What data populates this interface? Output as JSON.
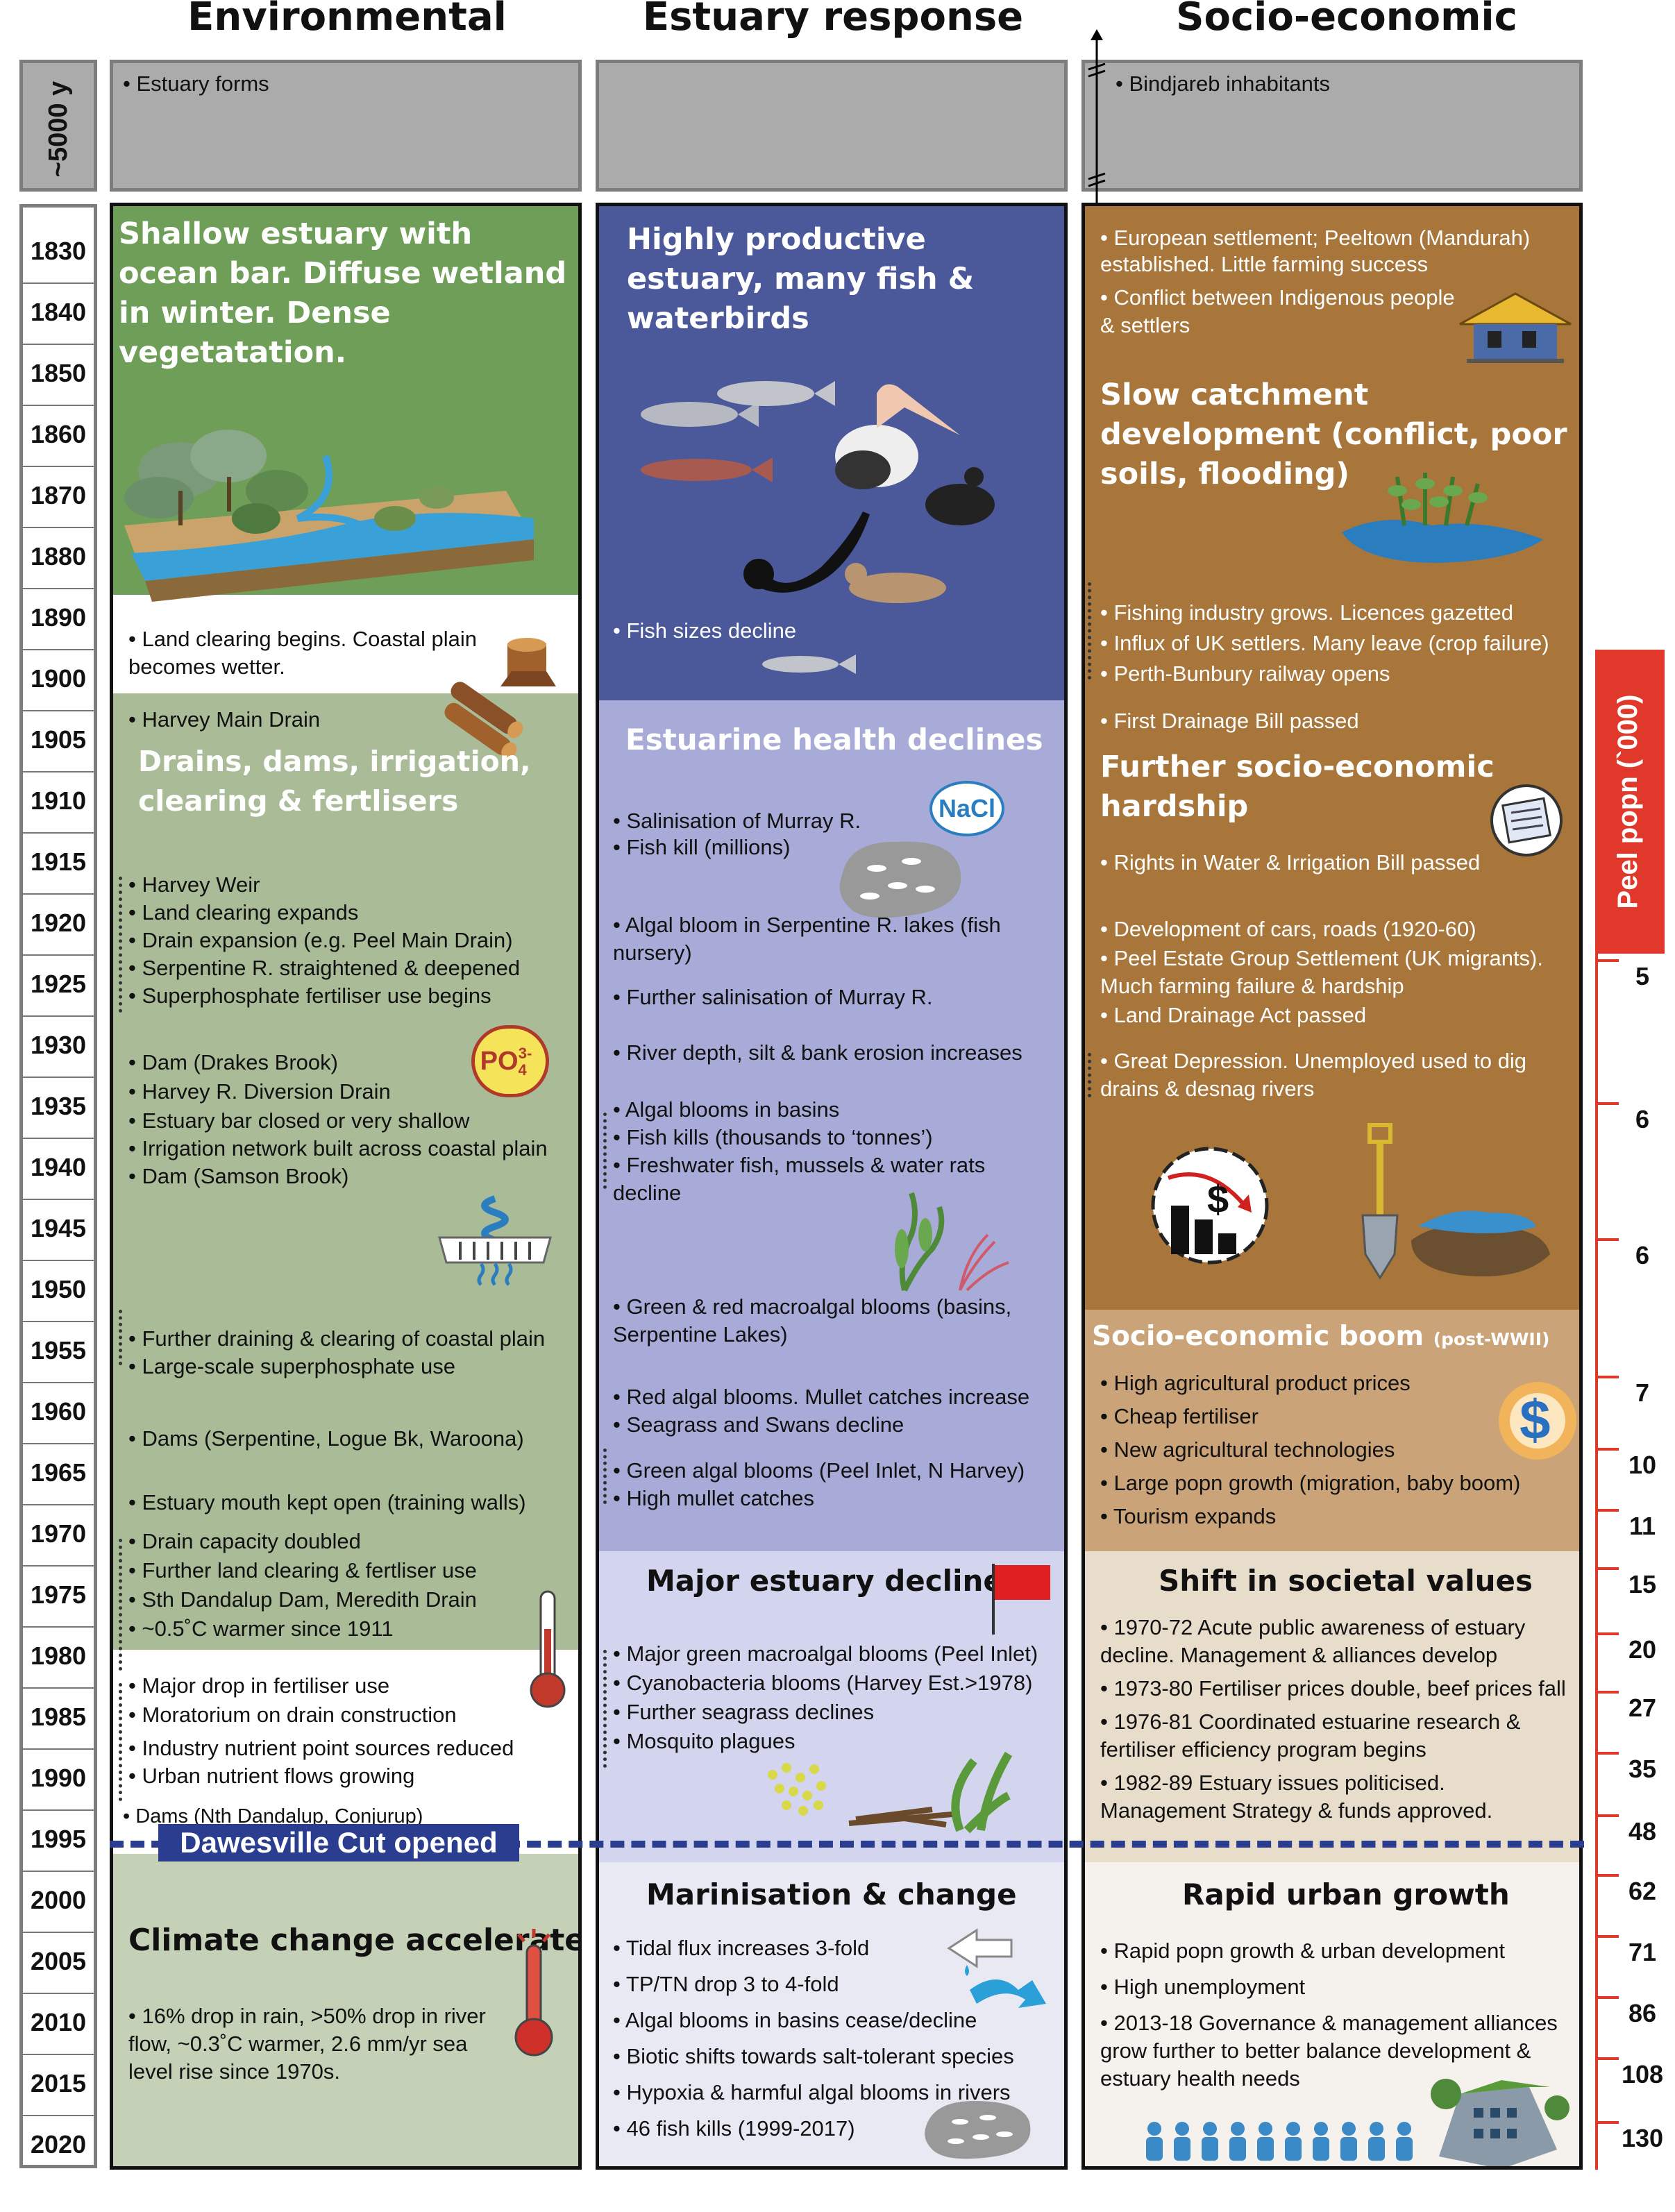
{
  "columns": {
    "env": "Environmental",
    "est": "Estuary response",
    "soc": "Socio-economic"
  },
  "top_label": "~5000 y",
  "top": {
    "env": "• Estuary forms",
    "est": "",
    "soc": "• Bindjareb inhabitants"
  },
  "years": [
    "1830",
    "1840",
    "1850",
    "1860",
    "1870",
    "1880",
    "1890",
    "1900",
    "1905",
    "1910",
    "1915",
    "1920",
    "1925",
    "1930",
    "1935",
    "1940",
    "1945",
    "1950",
    "1955",
    "1960",
    "1965",
    "1970",
    "1975",
    "1980",
    "1985",
    "1990",
    "1995",
    "2000",
    "2005",
    "2010",
    "2015",
    "2020"
  ],
  "env": {
    "h1": "Shallow estuary with ocean bar. Diffuse wetland in winter. Dense vegetatation.",
    "w1": [
      "• Land clearing begins. Coastal plain",
      "becomes wetter."
    ],
    "b1": "• Harvey Main Drain",
    "h2": "Drains, dams, irrigation, clearing & fertlisers",
    "g1": [
      "• Harvey Weir",
      "• Land clearing expands",
      "• Drain expansion (e.g. Peel Main Drain)",
      "• Serpentine R. straightened & deepened",
      "• Superphosphate fertiliser use begins"
    ],
    "g2": [
      "• Dam (Drakes Brook)",
      "• Harvey R. Diversion Drain",
      "• Estuary bar closed or very shallow",
      "• Irrigation network built across coastal plain",
      "• Dam (Samson Brook)"
    ],
    "po4": "PO",
    "po4sup": "3-",
    "po4sub": "4",
    "g3": [
      "• Further draining & clearing of coastal plain",
      "• Large-scale superphosphate use"
    ],
    "g4": "• Dams (Serpentine, Logue Bk, Waroona)",
    "g5": "• Estuary mouth kept open (training walls)",
    "g6": [
      "• Drain capacity doubled",
      "• Further land clearing & fertliser use",
      "• Sth Dandalup Dam, Meredith Drain",
      "• ~0.5˚C warmer since 1911"
    ],
    "w2": [
      "• Major drop in fertiliser use",
      "• Moratorium on drain construction",
      "• Industry nutrient point sources reduced",
      "• Urban nutrient flows growing"
    ],
    "w3": "• Dams (Nth Dandalup, Conjurup)",
    "cut": "Dawesville Cut opened",
    "h3": "Climate change accelerates",
    "g7": [
      "• 16% drop in rain, >50% drop in river",
      "flow, ~0.3˚C warmer, 2.6 mm/yr sea",
      "level rise since 1970s."
    ]
  },
  "est": {
    "h1": "Highly productive estuary, many fish & waterbirds",
    "b1": "• Fish sizes decline",
    "h2": "Estuarine health declines",
    "nacl": "NaCl",
    "l1": [
      "• Salinisation of Murray R.",
      "• Fish kill (millions)"
    ],
    "l2": [
      "• Algal bloom in Serpentine R. lakes (fish",
      "nursery)"
    ],
    "l3": "• Further salinisation of Murray R.",
    "l4": "• River depth, silt & bank erosion increases",
    "l5": [
      "• Algal blooms in basins",
      "• Fish kills (thousands to ‘tonnes’)",
      "• Freshwater fish, mussels & water rats",
      "decline"
    ],
    "l6": [
      "• Green & red macroalgal blooms (basins,",
      "Serpentine Lakes)"
    ],
    "l7": [
      "• Red algal blooms. Mullet catches increase",
      "• Seagrass and Swans decline"
    ],
    "l8": [
      "• Green algal blooms (Peel Inlet, N Harvey)",
      "• High mullet catches"
    ],
    "h3": "Major estuary decline",
    "l9": [
      "• Major green macroalgal blooms (Peel Inlet)",
      "• Cyanobacteria blooms (Harvey Est.>1978)",
      "• Further seagrass declines",
      "• Mosquito plagues"
    ],
    "h4": "Marinisation & change",
    "l10": [
      "• Tidal flux increases 3-fold",
      "• TP/TN drop 3 to 4-fold",
      "• Algal blooms in basins cease/decline",
      "• Biotic shifts towards salt-tolerant species",
      "• Hypoxia & harmful algal blooms in rivers",
      "• 46 fish kills (1999-2017)"
    ]
  },
  "soc": {
    "t1": [
      "• European settlement; Peeltown (Mandurah)",
      "established. Little farming success"
    ],
    "t2": [
      "• Conflict between Indigenous people",
      "& settlers"
    ],
    "h1": "Slow catchment development (conflict, poor soils, flooding)",
    "t3": [
      "• Fishing industry grows. Licences gazetted",
      "• Influx of UK settlers. Many leave (crop failure)",
      "• Perth-Bunbury railway opens"
    ],
    "t4": "• First Drainage Bill passed",
    "h2": "Further socio-economic hardship",
    "t5": "• Rights in Water & Irrigation Bill passed",
    "t6": [
      "• Development of cars, roads (1920-60)",
      "• Peel Estate Group Settlement (UK migrants).",
      "Much farming failure & hardship",
      "• Land Drainage Act passed"
    ],
    "t7": [
      "• Great Depression. Unemployed used to dig",
      "drains & desnag rivers"
    ],
    "h3": "Socio-economic boom",
    "h3small": "(post-WWII)",
    "t8": [
      "• High agricultural product prices",
      "• Cheap fertiliser",
      "• New agricultural technologies",
      "• Large popn growth (migration, baby boom)",
      "• Tourism expands"
    ],
    "h4": "Shift in societal values",
    "t9": [
      "• 1970-72 Acute public awareness of estuary",
      "decline. Management & alliances develop",
      "• 1973-80 Fertiliser prices double, beef prices fall",
      "• 1976-81 Coordinated estuarine research &",
      "fertiliser efficiency program begins",
      "• 1982-89 Estuary issues politicised.",
      "Management Strategy & funds approved."
    ],
    "h5": "Rapid urban growth",
    "t10": [
      "• Rapid popn growth & urban development",
      "• High unemployment",
      "• 2013-18 Governance & management alliances",
      "grow further to better balance development &",
      "estuary health needs"
    ]
  },
  "peel": {
    "label": "Peel popn (`000)",
    "values": [
      "5",
      "6",
      "6",
      "7",
      "10",
      "11",
      "15",
      "20",
      "27",
      "35",
      "48",
      "62",
      "71",
      "86",
      "108",
      "130"
    ]
  },
  "colors": {
    "green_dark": "#6e9e57",
    "green_light": "#a9bc97",
    "green_pale": "#c5d1b6",
    "navy": "#4b5899",
    "lavender": "#8f98c9",
    "lavender_light": "#a8abd8",
    "lavender_pale": "#d3d4ee",
    "lavender_faint": "#e9e9f4",
    "brown": "#a8753a",
    "tan": "#caa378",
    "beige": "#e8dccb",
    "cream": "#f5f1ec",
    "red": "#e0392b",
    "cut_blue": "#2a3d8f"
  }
}
